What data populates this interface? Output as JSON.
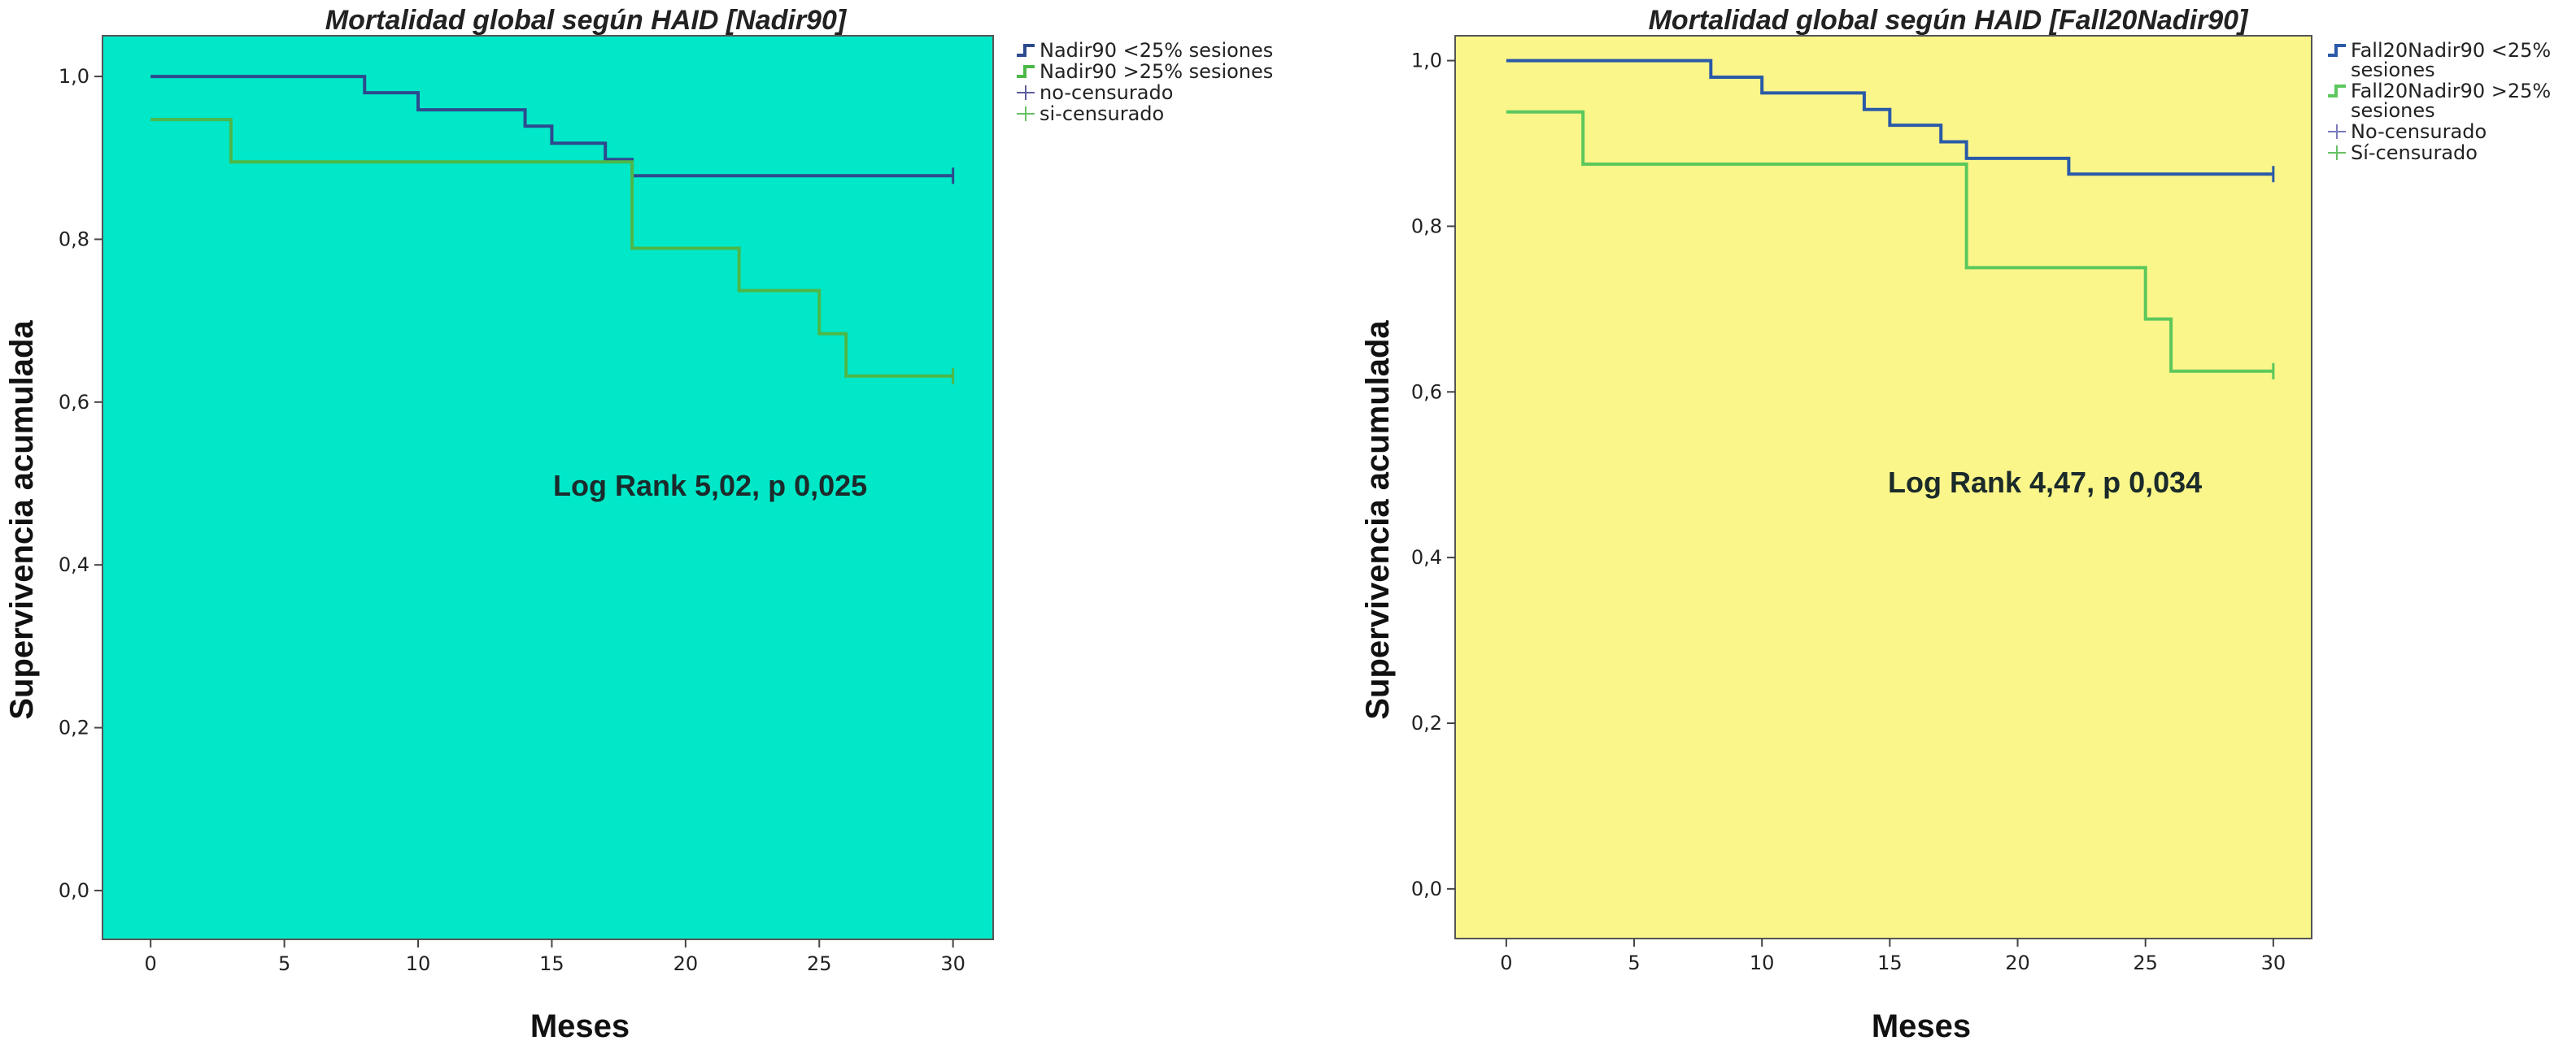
{
  "chart_data": [
    {
      "type": "line",
      "step": true,
      "title": "Mortalidad global según HAID [Nadir90]",
      "xlabel": "Meses",
      "ylabel": "Supervivencia acumulada",
      "xlim": [
        -1.8,
        31.5
      ],
      "ylim": [
        -0.06,
        1.05
      ],
      "xticks": [
        0,
        5,
        10,
        15,
        20,
        25,
        30
      ],
      "xtick_labels": [
        "0",
        "5",
        "10",
        "15",
        "20",
        "25",
        "30"
      ],
      "yticks": [
        0.0,
        0.2,
        0.4,
        0.6,
        0.8,
        1.0
      ],
      "ytick_labels": [
        "0,0",
        "0,2",
        "0,4",
        "0,6",
        "0,8",
        "1,0"
      ],
      "grid": false,
      "background": "#00e8c8",
      "legend_position": "right",
      "annotation": "Log Rank 5,02, p 0,025",
      "series": [
        {
          "name": "Nadir90 <25% sesiones",
          "color": "#2e4a8e",
          "x": [
            0,
            8,
            8,
            10,
            10,
            14,
            14,
            15,
            15,
            17,
            17,
            18,
            18,
            30
          ],
          "y": [
            1.0,
            1.0,
            0.98,
            0.98,
            0.959,
            0.959,
            0.939,
            0.939,
            0.918,
            0.918,
            0.898,
            0.898,
            0.878,
            0.878
          ]
        },
        {
          "name": "Nadir90 >25% sesiones",
          "color": "#4cb848",
          "x": [
            0,
            3,
            3,
            18,
            18,
            22,
            22,
            25,
            25,
            26,
            26,
            30
          ],
          "y": [
            0.947,
            0.947,
            0.895,
            0.895,
            0.789,
            0.789,
            0.737,
            0.737,
            0.684,
            0.684,
            0.632,
            0.632
          ]
        }
      ],
      "censor_legend": [
        {
          "name": "no-censurado",
          "color": "#5d5d9d"
        },
        {
          "name": "si-censurado",
          "color": "#66c266"
        }
      ]
    },
    {
      "type": "line",
      "step": true,
      "title": "Mortalidad global según HAID [Fall20Nadir90]",
      "xlabel": "Meses",
      "ylabel": "Supervivencia acumulada",
      "xlim": [
        -2.0,
        31.5
      ],
      "ylim": [
        -0.06,
        1.03
      ],
      "xticks": [
        0,
        5,
        10,
        15,
        20,
        25,
        30
      ],
      "xtick_labels": [
        "0",
        "5",
        "10",
        "15",
        "20",
        "25",
        "30"
      ],
      "yticks": [
        0.0,
        0.2,
        0.4,
        0.6,
        0.8,
        1.0
      ],
      "ytick_labels": [
        "0,0",
        "0,2",
        "0,4",
        "0,6",
        "0,8",
        "1,0"
      ],
      "grid": false,
      "background": "#fbf68a",
      "legend_position": "right",
      "annotation": "Log Rank 4,47, p 0,034",
      "series": [
        {
          "name": "Fall20Nadir90 <25% sesiones",
          "color": "#2a5aa8",
          "x": [
            0,
            8,
            8,
            10,
            10,
            14,
            14,
            15,
            15,
            17,
            17,
            18,
            18,
            22,
            22,
            30
          ],
          "y": [
            1.0,
            1.0,
            0.98,
            0.98,
            0.961,
            0.961,
            0.941,
            0.941,
            0.922,
            0.922,
            0.902,
            0.902,
            0.882,
            0.882,
            0.863,
            0.863
          ]
        },
        {
          "name": "Fall20Nadir90 >25% sesiones",
          "color": "#5cc85c",
          "x": [
            0,
            3,
            3,
            18,
            18,
            25,
            25,
            26,
            26,
            30
          ],
          "y": [
            0.938,
            0.938,
            0.875,
            0.875,
            0.75,
            0.75,
            0.688,
            0.688,
            0.625,
            0.625
          ]
        }
      ],
      "censor_legend": [
        {
          "name": "No-censurado",
          "color": "#7b7bbb"
        },
        {
          "name": "Sí-censurado",
          "color": "#66c266"
        }
      ]
    }
  ]
}
